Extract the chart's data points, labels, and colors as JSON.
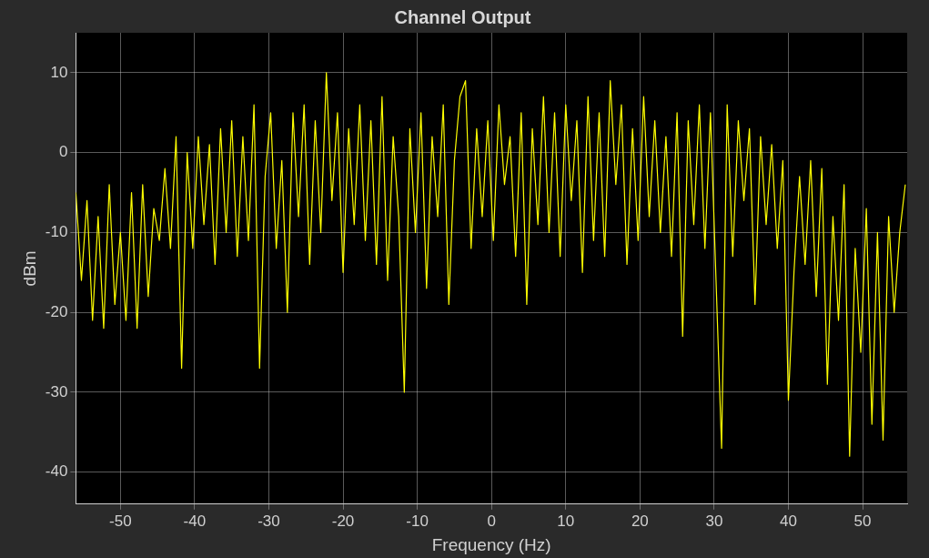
{
  "chart_data": {
    "type": "line",
    "title": "Channel Output",
    "xlabel": "Frequency (Hz)",
    "ylabel": "dBm",
    "xlim": [
      -56,
      56
    ],
    "xticks": [
      -50,
      -40,
      -30,
      -20,
      -10,
      0,
      10,
      20,
      30,
      40,
      50
    ],
    "ylim": [
      -44,
      15
    ],
    "yticks": [
      -40,
      -30,
      -20,
      -10,
      0,
      10
    ],
    "grid": true,
    "legend": false,
    "marker": "none",
    "line_style": "solid",
    "x": [
      -56,
      -55.25,
      -54.5,
      -53.75,
      -53,
      -52.25,
      -51.5,
      -50.75,
      -50,
      -49.25,
      -48.5,
      -47.75,
      -47,
      -46.25,
      -45.5,
      -44.75,
      -44,
      -43.25,
      -42.5,
      -41.75,
      -41,
      -40.25,
      -39.5,
      -38.75,
      -38,
      -37.25,
      -36.5,
      -35.75,
      -35,
      -34.25,
      -33.5,
      -32.75,
      -32,
      -31.25,
      -30.5,
      -29.75,
      -29,
      -28.25,
      -27.5,
      -26.75,
      -26,
      -25.25,
      -24.5,
      -23.75,
      -23,
      -22.25,
      -21.5,
      -20.75,
      -20,
      -19.25,
      -18.5,
      -17.75,
      -17,
      -16.25,
      -15.5,
      -14.75,
      -14,
      -13.25,
      -12.5,
      -11.75,
      -11,
      -10.25,
      -9.5,
      -8.75,
      -8,
      -7.25,
      -6.5,
      -5.75,
      -5,
      -4.25,
      -3.5,
      -2.75,
      -2,
      -1.25,
      -0.5,
      0.25,
      1,
      1.75,
      2.5,
      3.25,
      4,
      4.75,
      5.5,
      6.25,
      7,
      7.75,
      8.5,
      9.25,
      10,
      10.75,
      11.5,
      12.25,
      13,
      13.75,
      14.5,
      15.25,
      16,
      16.75,
      17.5,
      18.25,
      19,
      19.75,
      20.5,
      21.25,
      22,
      22.75,
      23.5,
      24.25,
      25,
      25.75,
      26.5,
      27.25,
      28,
      28.75,
      29.5,
      30.25,
      31,
      31.75,
      32.5,
      33.25,
      34,
      34.75,
      35.5,
      36.25,
      37,
      37.75,
      38.5,
      39.25,
      40,
      40.75,
      41.5,
      42.25,
      43,
      43.75,
      44.5,
      45.25,
      46,
      46.75,
      47.5,
      48.25,
      49,
      49.75,
      50.5,
      51.25,
      52,
      52.75,
      53.5,
      54.25,
      55,
      55.75
    ],
    "series": [
      {
        "color": "#ffff00",
        "values": [
          -5,
          -16,
          -6,
          -21,
          -8,
          -22,
          -4,
          -19,
          -10,
          -21,
          -5,
          -22,
          -4,
          -18,
          -7,
          -11,
          -2,
          -12,
          2,
          -27,
          0,
          -12,
          2,
          -9,
          1,
          -14,
          3,
          -10,
          4,
          -13,
          2,
          -11,
          6,
          -27,
          -3,
          5,
          -12,
          -1,
          -20,
          5,
          -8,
          6,
          -14,
          4,
          -10,
          10,
          -6,
          5,
          -15,
          3,
          -9,
          6,
          -11,
          4,
          -14,
          7,
          -16,
          2,
          -8,
          -30,
          3,
          -10,
          5,
          -17,
          2,
          -8,
          6,
          -19,
          -1,
          7,
          9,
          -12,
          3,
          -8,
          4,
          -11,
          6,
          -4,
          2,
          -13,
          5,
          -19,
          3,
          -9,
          7,
          -10,
          5,
          -13,
          6,
          -6,
          4,
          -15,
          7,
          -11,
          5,
          -13,
          9,
          -4,
          6,
          -14,
          3,
          -11,
          7,
          -8,
          4,
          -10,
          2,
          -13,
          5,
          -23,
          4,
          -9,
          6,
          -12,
          5,
          -16,
          -37,
          6,
          -13,
          4,
          -6,
          3,
          -19,
          2,
          -9,
          1,
          -12,
          -1,
          -31,
          -15,
          -3,
          -14,
          -1,
          -18,
          -2,
          -29,
          -8,
          -21,
          -4,
          -38,
          -12,
          -25,
          -7,
          -34,
          -10,
          -36,
          -8,
          -20,
          -10,
          -4
        ]
      }
    ]
  }
}
